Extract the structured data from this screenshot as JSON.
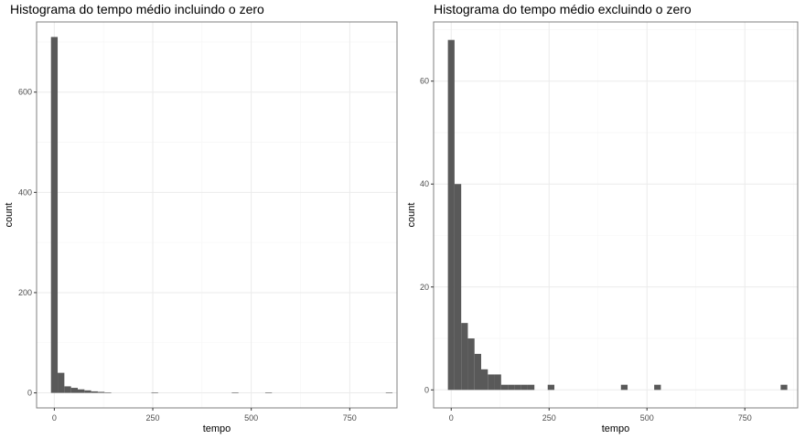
{
  "chart_data": [
    {
      "type": "bar",
      "title": "Histograma do tempo médio incluindo o zero",
      "xlabel": "tempo",
      "ylabel": "count",
      "xlim": [
        -45,
        870
      ],
      "ylim": [
        -30,
        740
      ],
      "xticks": [
        0,
        250,
        500,
        750
      ],
      "xtick_labels": [
        "0",
        "250",
        "500",
        "750"
      ],
      "yticks": [
        0,
        200,
        400,
        600
      ],
      "ytick_labels": [
        "0",
        "200",
        "400",
        "600"
      ],
      "grid": true,
      "bin_width": 17,
      "bins": [
        {
          "x0": -8.5,
          "x1": 8.5,
          "count": 710
        },
        {
          "x0": 8.5,
          "x1": 25.5,
          "count": 40
        },
        {
          "x0": 25.5,
          "x1": 42.5,
          "count": 13
        },
        {
          "x0": 42.5,
          "x1": 59.5,
          "count": 10
        },
        {
          "x0": 59.5,
          "x1": 76.5,
          "count": 7
        },
        {
          "x0": 76.5,
          "x1": 93.5,
          "count": 5
        },
        {
          "x0": 93.5,
          "x1": 110.5,
          "count": 3
        },
        {
          "x0": 110.5,
          "x1": 127.5,
          "count": 2
        },
        {
          "x0": 127.5,
          "x1": 144.5,
          "count": 1
        },
        {
          "x0": 246.5,
          "x1": 263.5,
          "count": 1
        },
        {
          "x0": 450.5,
          "x1": 467.5,
          "count": 1
        },
        {
          "x0": 535.5,
          "x1": 552.5,
          "count": 1
        },
        {
          "x0": 841.5,
          "x1": 858.5,
          "count": 1
        }
      ]
    },
    {
      "type": "bar",
      "title": "Histograma do tempo médio excluindo o zero",
      "xlabel": "tempo",
      "ylabel": "count",
      "xlim": [
        -45,
        885
      ],
      "ylim": [
        -3.5,
        71.5
      ],
      "xticks": [
        0,
        250,
        500,
        750
      ],
      "xtick_labels": [
        "0",
        "250",
        "500",
        "750"
      ],
      "yticks": [
        0,
        20,
        40,
        60
      ],
      "ytick_labels": [
        "0",
        "20",
        "40",
        "60"
      ],
      "grid": true,
      "bin_width": 17,
      "bins": [
        {
          "x0": -8.5,
          "x1": 8.5,
          "count": 68
        },
        {
          "x0": 8.5,
          "x1": 25.5,
          "count": 40
        },
        {
          "x0": 25.5,
          "x1": 42.5,
          "count": 13
        },
        {
          "x0": 42.5,
          "x1": 59.5,
          "count": 10
        },
        {
          "x0": 59.5,
          "x1": 76.5,
          "count": 7
        },
        {
          "x0": 76.5,
          "x1": 93.5,
          "count": 4
        },
        {
          "x0": 93.5,
          "x1": 110.5,
          "count": 3
        },
        {
          "x0": 110.5,
          "x1": 127.5,
          "count": 3
        },
        {
          "x0": 127.5,
          "x1": 144.5,
          "count": 1
        },
        {
          "x0": 144.5,
          "x1": 161.5,
          "count": 1
        },
        {
          "x0": 161.5,
          "x1": 178.5,
          "count": 1
        },
        {
          "x0": 178.5,
          "x1": 195.5,
          "count": 1
        },
        {
          "x0": 195.5,
          "x1": 212.5,
          "count": 1
        },
        {
          "x0": 246.5,
          "x1": 263.5,
          "count": 1
        },
        {
          "x0": 433.5,
          "x1": 450.5,
          "count": 1
        },
        {
          "x0": 518.5,
          "x1": 535.5,
          "count": 1
        },
        {
          "x0": 841.5,
          "x1": 858.5,
          "count": 1
        }
      ]
    }
  ],
  "colors": {
    "bar_fill": "#595959",
    "panel_border": "#7f7f7f",
    "grid_major": "#ebebeb",
    "grid_minor": "#f5f5f5",
    "tick_text": "#4d4d4d",
    "axis_title": "#000000"
  }
}
